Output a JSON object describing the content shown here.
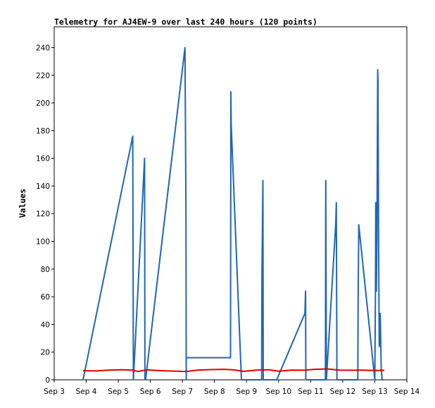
{
  "chart_data": {
    "type": "line",
    "title": "Telemetry for AJ4EW-9 over last 240 hours (120 points)",
    "xlabel": "",
    "ylabel": "Values",
    "x_ticks": [
      "Sep 3",
      "Sep 4",
      "Sep 5",
      "Sep 6",
      "Sep 7",
      "Sep 8",
      "Sep 9",
      "Sep 10",
      "Sep 11",
      "Sep 12",
      "Sep 13",
      "Sep 14"
    ],
    "y_ticks": [
      0,
      20,
      40,
      60,
      80,
      100,
      120,
      140,
      160,
      180,
      200,
      220,
      240
    ],
    "xlim_days": [
      3,
      14
    ],
    "ylim": [
      0,
      255
    ],
    "grid": false,
    "series": [
      {
        "color": "#1f66b5",
        "x_days": [
          3.9,
          5.45,
          5.47,
          5.82,
          5.83,
          5.85,
          7.08,
          7.11,
          7.12,
          7.12,
          8.5,
          8.51,
          8.52,
          8.84,
          9.47,
          9.48,
          9.51,
          9.52,
          9.94,
          10.82,
          10.84,
          10.85,
          11.46,
          11.47,
          11.49,
          11.78,
          11.8,
          11.82,
          12.47,
          12.48,
          12.5,
          13.0,
          13.02,
          13.03,
          13.05,
          13.07,
          13.09,
          13.1,
          13.12,
          13.14,
          13.17,
          13.2,
          13.23,
          13.26
        ],
        "values": [
          0,
          176,
          0,
          160,
          0,
          0,
          240,
          120,
          0,
          16,
          16,
          208,
          185,
          0,
          0,
          72,
          144,
          0,
          0,
          48,
          64,
          0,
          0,
          144,
          0,
          112,
          128,
          0,
          0,
          56,
          112,
          0,
          64,
          128,
          64,
          112,
          224,
          216,
          96,
          24,
          48,
          8,
          0,
          0
        ]
      },
      {
        "color": "#e00000",
        "x_days": [
          3.9,
          4.3,
          4.7,
          5.1,
          5.45,
          5.6,
          5.9,
          6.3,
          6.7,
          7.1,
          7.5,
          7.9,
          8.3,
          8.6,
          8.9,
          9.3,
          9.7,
          10.0,
          10.4,
          10.8,
          11.1,
          11.5,
          11.9,
          12.3,
          12.6,
          13.0,
          13.3
        ],
        "values": [
          6.5,
          6.4,
          7.0,
          7.3,
          7.0,
          6.0,
          7.2,
          6.6,
          6.3,
          6.0,
          7.1,
          7.4,
          7.6,
          7.2,
          6.1,
          7.0,
          7.3,
          6.2,
          7.0,
          6.9,
          7.5,
          7.9,
          7.0,
          6.9,
          7.0,
          6.7,
          6.8
        ]
      }
    ]
  }
}
